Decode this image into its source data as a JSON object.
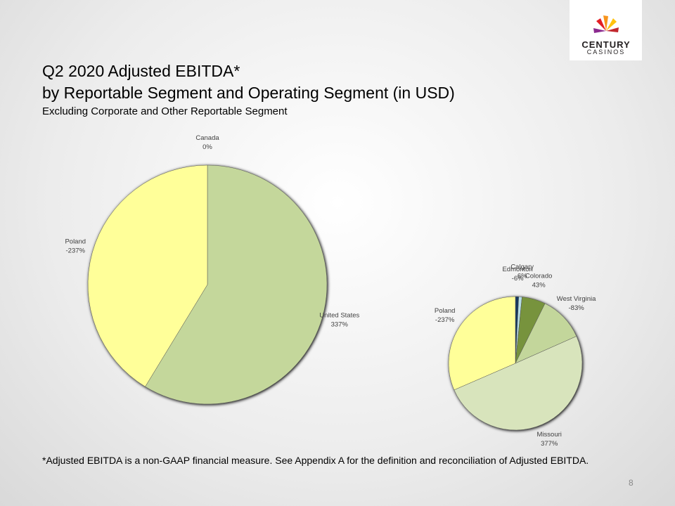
{
  "header": {
    "title_lines": [
      "Q2 2020 Adjusted EBITDA*",
      "by Reportable Segment and Operating Segment (in USD)"
    ],
    "subtitle": "Excluding Corporate and Other Reportable Segment",
    "footnote": "*Adjusted EBITDA is a non-GAAP financial measure. See Appendix A for the definition and reconciliation of Adjusted EBITDA.",
    "page_number": "8",
    "logo": [
      "CENTURY",
      "CASINOS"
    ]
  },
  "chart_data": [
    {
      "type": "pie",
      "categories": [
        "Canada",
        "United States",
        "Poland"
      ],
      "values": [
        0,
        337,
        -237
      ],
      "value_labels": [
        "0%",
        "337%",
        "-237%"
      ],
      "colors": [
        "#8db3e2",
        "#c4d79b",
        "#ffff99"
      ]
    },
    {
      "type": "pie",
      "categories": [
        "Edmonton",
        "Calgary",
        "Colorado",
        "West Virginia",
        "Missouri",
        "Poland"
      ],
      "values": [
        -6,
        6,
        43,
        -83,
        377,
        -237
      ],
      "value_labels": [
        "-6%",
        "6%",
        "43%",
        "-83%",
        "377%",
        "-237%"
      ],
      "colors": [
        "#17375e",
        "#b7dee8",
        "#77933c",
        "#c3d69b",
        "#d8e4bc",
        "#ffff99"
      ]
    }
  ]
}
